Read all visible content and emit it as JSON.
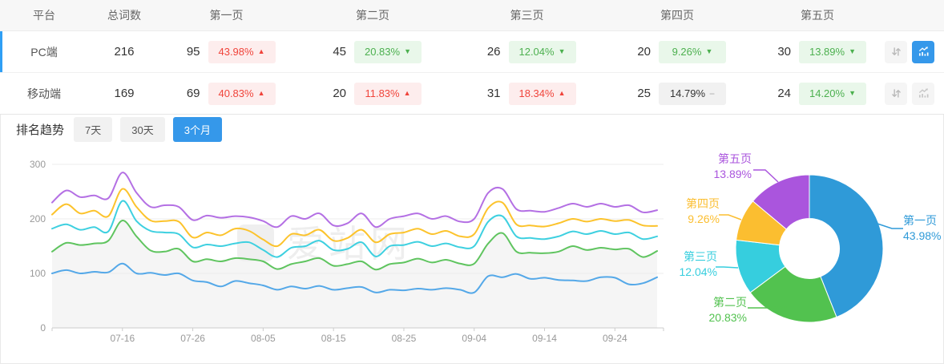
{
  "colors": {
    "accent_blue": "#3598ea",
    "row_accent": "#2f9ff5",
    "up_red": "#f0443b",
    "up_red_bg": "#fdeded",
    "down_green": "#4cb04f",
    "down_green_bg": "#e9f7ea",
    "flat_bg": "#f1f1f1",
    "header_bg": "#f7f7f7"
  },
  "table": {
    "headers": {
      "platform": "平台",
      "total": "总词数",
      "page1": "第一页",
      "page2": "第二页",
      "page3": "第三页",
      "page4": "第四页",
      "page5": "第五页"
    },
    "rows": [
      {
        "platform": "PC端",
        "total": "216",
        "selected": true,
        "chart_active": true,
        "pages": [
          {
            "count": "95",
            "pct": "43.98%",
            "trend": "up"
          },
          {
            "count": "45",
            "pct": "20.83%",
            "trend": "down"
          },
          {
            "count": "26",
            "pct": "12.04%",
            "trend": "down"
          },
          {
            "count": "20",
            "pct": "9.26%",
            "trend": "down"
          },
          {
            "count": "30",
            "pct": "13.89%",
            "trend": "down"
          }
        ]
      },
      {
        "platform": "移动端",
        "total": "169",
        "selected": false,
        "chart_active": false,
        "pages": [
          {
            "count": "69",
            "pct": "40.83%",
            "trend": "up"
          },
          {
            "count": "20",
            "pct": "11.83%",
            "trend": "up"
          },
          {
            "count": "31",
            "pct": "18.34%",
            "trend": "up"
          },
          {
            "count": "25",
            "pct": "14.79%",
            "trend": "flat"
          },
          {
            "count": "24",
            "pct": "14.20%",
            "trend": "down"
          }
        ]
      }
    ]
  },
  "trend": {
    "title": "排名趋势",
    "tabs": [
      {
        "label": "7天",
        "active": false
      },
      {
        "label": "30天",
        "active": false
      },
      {
        "label": "3个月",
        "active": true
      }
    ]
  },
  "watermark": "爱站网",
  "chart_data": [
    {
      "type": "line",
      "title": "排名趋势 - 3个月",
      "grid": true,
      "legend": false,
      "ylim": [
        0,
        300
      ],
      "y_ticks": [
        0,
        100,
        200,
        300
      ],
      "x_tick_labels": [
        "07-16",
        "07-26",
        "08-05",
        "08-15",
        "08-25",
        "09-04",
        "09-14",
        "09-24"
      ],
      "x": [
        "07-06",
        "07-08",
        "07-10",
        "07-12",
        "07-14",
        "07-16",
        "07-18",
        "07-20",
        "07-22",
        "07-24",
        "07-26",
        "07-28",
        "07-30",
        "08-01",
        "08-03",
        "08-05",
        "08-07",
        "08-09",
        "08-11",
        "08-13",
        "08-15",
        "08-17",
        "08-19",
        "08-21",
        "08-23",
        "08-25",
        "08-27",
        "08-29",
        "08-31",
        "09-02",
        "09-04",
        "09-06",
        "09-08",
        "09-10",
        "09-12",
        "09-14",
        "09-16",
        "09-18",
        "09-20",
        "09-22",
        "09-24",
        "09-26",
        "09-28",
        "09-30"
      ],
      "series": [
        {
          "name": "第一页",
          "color": "#54a8e8",
          "values": [
            100,
            106,
            100,
            103,
            102,
            118,
            100,
            101,
            97,
            100,
            87,
            84,
            76,
            86,
            82,
            78,
            70,
            76,
            72,
            77,
            70,
            73,
            75,
            65,
            70,
            69,
            72,
            70,
            73,
            70,
            65,
            95,
            93,
            99,
            90,
            92,
            88,
            87,
            86,
            93,
            92,
            80,
            82,
            93
          ]
        },
        {
          "name": "第二页",
          "color": "#5fc45f",
          "area": "#f5f5f5",
          "values": [
            140,
            156,
            152,
            155,
            160,
            197,
            168,
            142,
            140,
            145,
            122,
            126,
            122,
            128,
            126,
            122,
            108,
            117,
            122,
            128,
            114,
            117,
            122,
            107,
            117,
            120,
            127,
            120,
            125,
            118,
            118,
            155,
            174,
            140,
            138,
            137,
            140,
            150,
            143,
            147,
            144,
            145,
            130,
            141
          ]
        },
        {
          "name": "第三页",
          "color": "#3ed0e0",
          "values": [
            182,
            190,
            180,
            185,
            177,
            233,
            196,
            178,
            175,
            172,
            148,
            153,
            150,
            155,
            157,
            143,
            130,
            147,
            150,
            160,
            143,
            145,
            157,
            131,
            150,
            152,
            158,
            150,
            155,
            148,
            150,
            195,
            205,
            168,
            165,
            163,
            168,
            177,
            172,
            178,
            172,
            175,
            163,
            168
          ]
        },
        {
          "name": "第四页",
          "color": "#fcc32c",
          "values": [
            208,
            227,
            210,
            215,
            205,
            255,
            222,
            197,
            196,
            195,
            166,
            175,
            170,
            182,
            178,
            162,
            150,
            172,
            170,
            180,
            160,
            165,
            180,
            157,
            172,
            175,
            182,
            172,
            178,
            168,
            172,
            220,
            230,
            190,
            188,
            186,
            192,
            200,
            195,
            200,
            196,
            198,
            188,
            187
          ]
        },
        {
          "name": "第五页",
          "color": "#b470e4",
          "values": [
            230,
            252,
            240,
            243,
            238,
            285,
            248,
            222,
            225,
            222,
            198,
            206,
            202,
            205,
            203,
            196,
            185,
            205,
            200,
            210,
            188,
            192,
            210,
            185,
            200,
            205,
            210,
            200,
            205,
            195,
            200,
            248,
            255,
            218,
            215,
            213,
            220,
            228,
            222,
            228,
            222,
            225,
            212,
            216
          ]
        }
      ]
    },
    {
      "type": "pie",
      "donut": true,
      "labels": [
        "第一页",
        "第二页",
        "第三页",
        "第四页",
        "第五页"
      ],
      "values": [
        43.98,
        20.83,
        12.04,
        9.26,
        13.89
      ],
      "display": [
        "43.98%",
        "20.83%",
        "12.04%",
        "9.26%",
        "13.89%"
      ],
      "colors": [
        "#2f9ad8",
        "#52c24f",
        "#36cede",
        "#fbbe30",
        "#aa55dd"
      ]
    }
  ]
}
